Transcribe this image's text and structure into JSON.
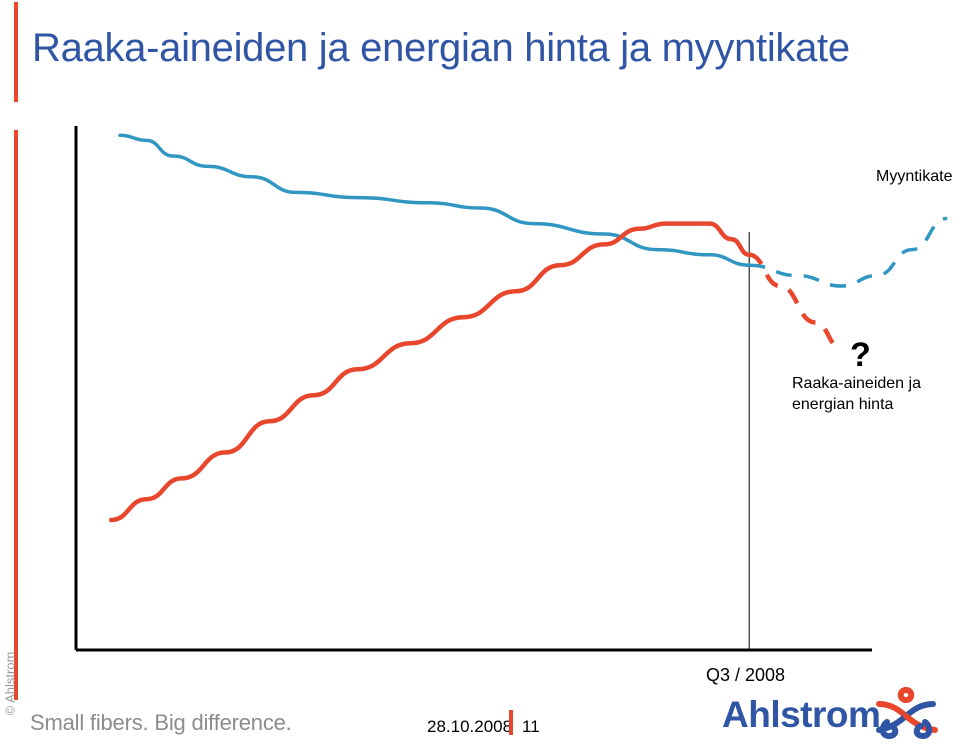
{
  "title": "Raaka-aineiden ja energian hinta ja myyntikate",
  "copyright": "© Ahlstrom",
  "footer": {
    "slogan": "Small fibers. Big difference.",
    "date": "28.10.2008",
    "page": "11",
    "logo_text": "Ahlstrom"
  },
  "colors": {
    "title": "#2f55a4",
    "accent": "#e8472e",
    "margin_series": "#3096c2",
    "price_series": "#e8472e"
  },
  "chart_data": {
    "type": "line",
    "title": "",
    "xlabel": "",
    "ylabel": "",
    "axis_ticks": "none",
    "marker": {
      "label": "Q3 / 2008",
      "x": 76.5
    },
    "annotation": "?",
    "xlim": [
      0,
      100
    ],
    "ylim": [
      0,
      100
    ],
    "series": [
      {
        "name": "Myyntikate",
        "color": "#3096c2",
        "actual": [
          [
            5,
            99
          ],
          [
            8,
            98
          ],
          [
            11,
            95
          ],
          [
            15,
            93
          ],
          [
            20,
            91
          ],
          [
            25,
            88
          ],
          [
            32,
            87
          ],
          [
            40,
            86
          ],
          [
            46,
            85
          ],
          [
            52,
            82
          ],
          [
            60,
            80
          ],
          [
            66,
            77
          ],
          [
            72,
            76
          ],
          [
            76.5,
            74
          ]
        ],
        "forecast": [
          [
            76.5,
            74
          ],
          [
            82,
            72
          ],
          [
            87,
            70
          ],
          [
            91,
            72
          ],
          [
            95,
            77
          ],
          [
            99,
            83
          ]
        ]
      },
      {
        "name": "Raaka-aineiden ja energian hinta",
        "color": "#e8472e",
        "actual": [
          [
            4,
            25
          ],
          [
            8,
            29
          ],
          [
            12,
            33
          ],
          [
            17,
            38
          ],
          [
            22,
            44
          ],
          [
            27,
            49
          ],
          [
            32,
            54
          ],
          [
            38,
            59
          ],
          [
            44,
            64
          ],
          [
            50,
            69
          ],
          [
            55,
            74
          ],
          [
            60,
            78
          ],
          [
            64,
            81
          ],
          [
            67,
            82
          ],
          [
            72,
            82
          ],
          [
            74.5,
            79
          ],
          [
            76.5,
            76
          ]
        ],
        "forecast": [
          [
            76.5,
            76
          ],
          [
            80,
            70
          ],
          [
            84,
            63
          ],
          [
            87,
            58
          ]
        ]
      }
    ]
  }
}
